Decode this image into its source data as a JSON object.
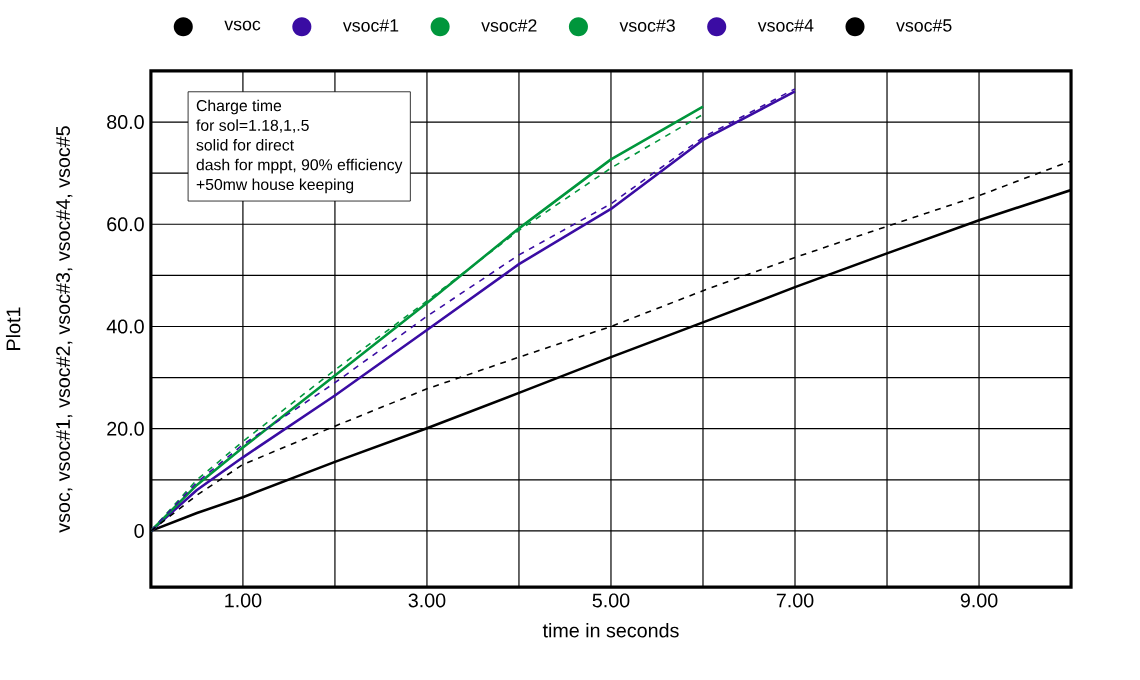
{
  "chart_data": {
    "type": "line",
    "xlabel": "time in seconds",
    "ylabel": "Plot1",
    "x": [
      0,
      0.5,
      1,
      2,
      3,
      4,
      5,
      6,
      7,
      8,
      9,
      10
    ],
    "series": [
      {
        "name": "vsoc",
        "color": "#000000",
        "line_style": "solid",
        "values": [
          0,
          3.5,
          6.6,
          13.5,
          20.1,
          27,
          34,
          40.8,
          47.7,
          54.3,
          60.8,
          66.7
        ]
      },
      {
        "name": "vsoc#1",
        "color": "#3a0ca3",
        "line_style": "solid",
        "values": [
          0,
          8,
          14.4,
          26.5,
          39.3,
          52.2,
          63,
          76.5,
          86,
          null,
          null,
          null
        ]
      },
      {
        "name": "vsoc#2",
        "color": "#00963c",
        "line_style": "solid",
        "values": [
          0,
          9,
          16.3,
          30.4,
          44.6,
          59.2,
          72.7,
          83,
          null,
          null,
          null,
          null
        ]
      },
      {
        "name": "vsoc#3",
        "color": "#00963c",
        "line_style": "dashed",
        "values": [
          0,
          10,
          17.5,
          31.5,
          45,
          58.8,
          71,
          81.5,
          null,
          null,
          null,
          null
        ]
      },
      {
        "name": "vsoc#4",
        "color": "#3a0ca3",
        "line_style": "dashed",
        "values": [
          0,
          9.5,
          16.9,
          29,
          42,
          54,
          64,
          77,
          86.5,
          null,
          null,
          null
        ]
      },
      {
        "name": "vsoc#5",
        "color": "#000000",
        "line_style": "dashed",
        "values": [
          0,
          7,
          13,
          20.5,
          27.8,
          34,
          40,
          47,
          53.5,
          59.6,
          65.6,
          72.4
        ]
      }
    ],
    "xlim": [
      0,
      10
    ],
    "ylim": [
      -11,
      90
    ],
    "xticks": [
      {
        "value": 1,
        "label": "1.00"
      },
      {
        "value": 2,
        "label": null
      },
      {
        "value": 3,
        "label": "3.00"
      },
      {
        "value": 4,
        "label": null
      },
      {
        "value": 5,
        "label": "5.00"
      },
      {
        "value": 6,
        "label": null
      },
      {
        "value": 7,
        "label": "7.00"
      },
      {
        "value": 8,
        "label": null
      },
      {
        "value": 9,
        "label": "9.00"
      }
    ],
    "yticks": [
      0,
      {
        "value": 10,
        "label": null
      },
      {
        "value": 20,
        "label": "20.0"
      },
      {
        "value": 30,
        "label": null
      },
      {
        "value": 40,
        "label": "40.0"
      },
      {
        "value": 50,
        "label": null
      },
      {
        "value": 60,
        "label": "60.0"
      },
      {
        "value": 70,
        "label": null
      },
      {
        "value": 80,
        "label": "80.0"
      }
    ],
    "grid": true,
    "legend": "top",
    "annotations": [
      "Charge time",
      "for sol=1.18,1,.5",
      "solid for direct",
      "dash for mppt, 90% efficiency",
      "+50mw house keeping",
      "vsoc, vsoc#1, vsoc#2, vsoc#3, vsoc#4, vsoc#5"
    ]
  }
}
